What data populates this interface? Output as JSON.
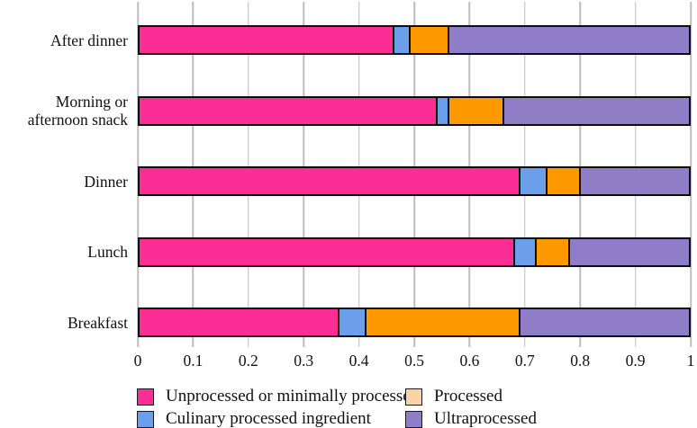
{
  "chart_data": {
    "type": "bar",
    "orientation": "horizontal",
    "stacked": true,
    "title": "",
    "xlabel": "",
    "ylabel": "",
    "xlim": [
      0,
      1
    ],
    "grid": true,
    "x_ticks": [
      "0",
      "0.1",
      "0.2",
      "0.3",
      "0.4",
      "0.5",
      "0.6",
      "0.7",
      "0.8",
      "0.9",
      "1"
    ],
    "x_tick_values": [
      0,
      0.1,
      0.2,
      0.3,
      0.4,
      0.5,
      0.6,
      0.7,
      0.8,
      0.9,
      1
    ],
    "categories": [
      "After dinner",
      "Morning or afternoon snack",
      "Dinner",
      "Lunch",
      "Breakfast"
    ],
    "series": [
      {
        "name": "Unprocessed or minimally processed",
        "bar_color": "#FB2E95",
        "swatch_color": "#FB2E95",
        "values": [
          0.46,
          0.54,
          0.69,
          0.68,
          0.36
        ]
      },
      {
        "name": "Culinary processed ingredient",
        "bar_color": "#6B9FE9",
        "swatch_color": "#6B9FE9",
        "values": [
          0.03,
          0.02,
          0.05,
          0.04,
          0.05
        ]
      },
      {
        "name": "Processed",
        "bar_color": "#FF9900",
        "swatch_color": "#FBD3A6",
        "values": [
          0.07,
          0.1,
          0.06,
          0.06,
          0.28
        ]
      },
      {
        "name": "Ultraprocessed",
        "bar_color": "#8F7EC7",
        "swatch_color": "#8F7EC7",
        "values": [
          0.44,
          0.34,
          0.2,
          0.22,
          0.31
        ]
      }
    ],
    "legend_position": "bottom",
    "legend_columns": 2,
    "legend_order": [
      "Unprocessed or minimally processed",
      "Processed",
      "Culinary processed ingredient",
      "Ultraprocessed"
    ]
  },
  "style_colors": {
    "gridline": "#bdbdbd",
    "bar_border": "#0d0d0d",
    "text": "#111111",
    "background": "#ffffff"
  }
}
